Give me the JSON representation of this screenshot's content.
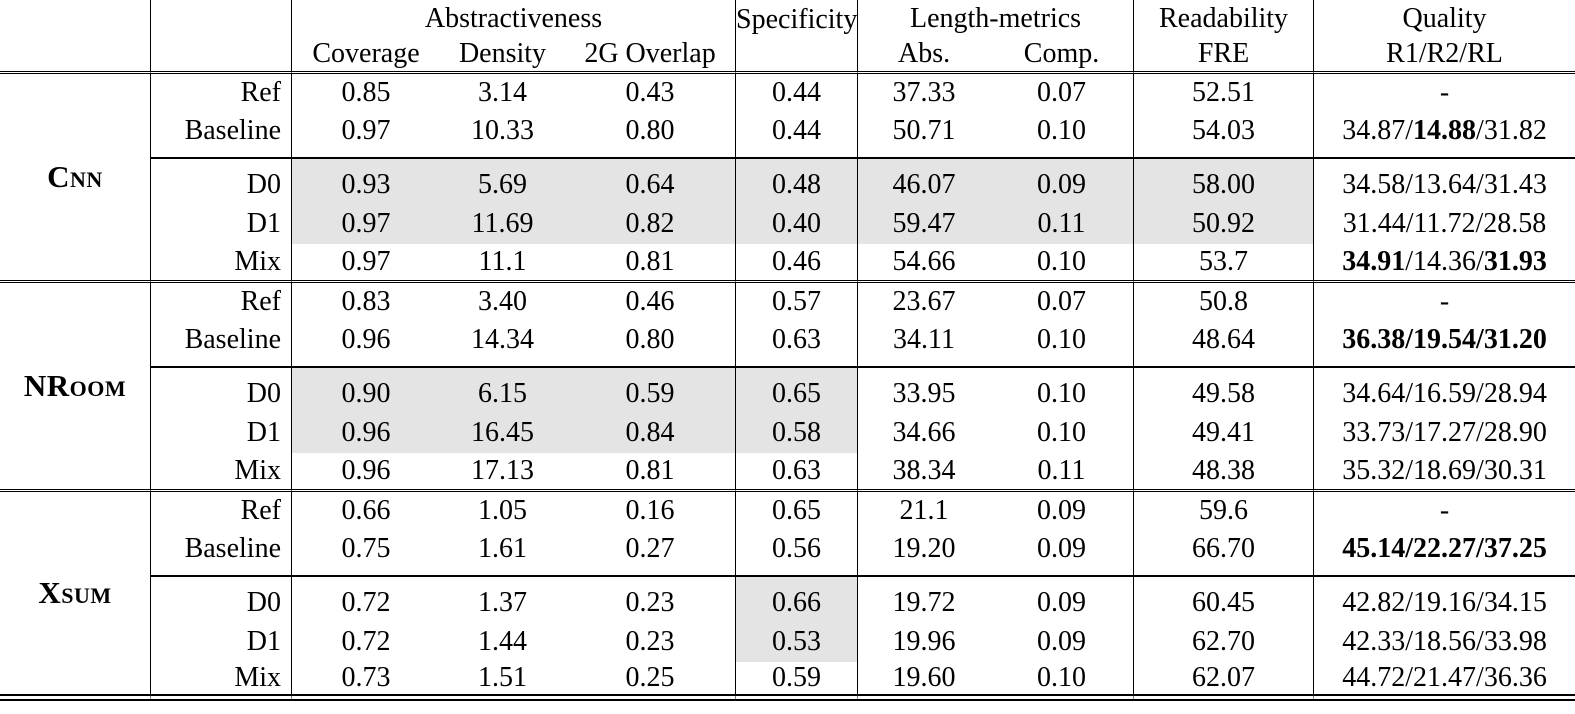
{
  "highlight_color": "#e4e4e4",
  "header": {
    "groups": {
      "abstractiveness": "Abstractiveness",
      "specificity": "Specificity",
      "length_metrics": "Length-metrics",
      "readability": "Readability",
      "quality": "Quality"
    },
    "subs": {
      "coverage": "Coverage",
      "density": "Density",
      "overlap": "2G Overlap",
      "abs": "Abs.",
      "comp": "Comp.",
      "fre": "FRE",
      "rouge": "R1/R2/RL"
    }
  },
  "blocks": [
    {
      "name": "Cnn",
      "rows": [
        {
          "label": "Ref",
          "values": [
            "0.85",
            "3.14",
            "0.43",
            "0.44",
            "37.33",
            "0.07",
            "52.51"
          ],
          "quality": [
            "-"
          ],
          "bold": [
            false
          ],
          "hl": []
        },
        {
          "label": "Baseline",
          "values": [
            "0.97",
            "10.33",
            "0.80",
            "0.44",
            "50.71",
            "0.10",
            "54.03"
          ],
          "quality": [
            "34.87",
            "14.88",
            "31.82"
          ],
          "bold": [
            false,
            true,
            false
          ],
          "hl": []
        },
        {
          "label": "D0",
          "values": [
            "0.93",
            "5.69",
            "0.64",
            "0.48",
            "46.07",
            "0.09",
            "58.00"
          ],
          "quality": [
            "34.58",
            "13.64",
            "31.43"
          ],
          "bold": [
            false,
            false,
            false
          ],
          "hl": [
            0,
            1,
            2,
            3,
            4,
            5,
            6
          ]
        },
        {
          "label": "D1",
          "values": [
            "0.97",
            "11.69",
            "0.82",
            "0.40",
            "59.47",
            "0.11",
            "50.92"
          ],
          "quality": [
            "31.44",
            "11.72",
            "28.58"
          ],
          "bold": [
            false,
            false,
            false
          ],
          "hl": [
            0,
            1,
            2,
            3,
            4,
            5,
            6
          ]
        },
        {
          "label": "Mix",
          "values": [
            "0.97",
            "11.1",
            "0.81",
            "0.46",
            "54.66",
            "0.10",
            "53.7"
          ],
          "quality": [
            "34.91",
            "14.36",
            "31.93"
          ],
          "bold": [
            true,
            false,
            true
          ],
          "hl": []
        }
      ]
    },
    {
      "name": "NRoom",
      "rows": [
        {
          "label": "Ref",
          "values": [
            "0.83",
            "3.40",
            "0.46",
            "0.57",
            "23.67",
            "0.07",
            "50.8"
          ],
          "quality": [
            "-"
          ],
          "bold": [
            false
          ],
          "hl": []
        },
        {
          "label": "Baseline",
          "values": [
            "0.96",
            "14.34",
            "0.80",
            "0.63",
            "34.11",
            "0.10",
            "48.64"
          ],
          "quality": [
            "36.38",
            "19.54",
            "31.20"
          ],
          "bold": [
            true,
            true,
            true
          ],
          "hl": []
        },
        {
          "label": "D0",
          "values": [
            "0.90",
            "6.15",
            "0.59",
            "0.65",
            "33.95",
            "0.10",
            "49.58"
          ],
          "quality": [
            "34.64",
            "16.59",
            "28.94"
          ],
          "bold": [
            false,
            false,
            false
          ],
          "hl": [
            0,
            1,
            2,
            3
          ]
        },
        {
          "label": "D1",
          "values": [
            "0.96",
            "16.45",
            "0.84",
            "0.58",
            "34.66",
            "0.10",
            "49.41"
          ],
          "quality": [
            "33.73",
            "17.27",
            "28.90"
          ],
          "bold": [
            false,
            false,
            false
          ],
          "hl": [
            0,
            1,
            2,
            3
          ]
        },
        {
          "label": "Mix",
          "values": [
            "0.96",
            "17.13",
            "0.81",
            "0.63",
            "38.34",
            "0.11",
            "48.38"
          ],
          "quality": [
            "35.32",
            "18.69",
            "30.31"
          ],
          "bold": [
            false,
            false,
            false
          ],
          "hl": []
        }
      ]
    },
    {
      "name": "Xsum",
      "rows": [
        {
          "label": "Ref",
          "values": [
            "0.66",
            "1.05",
            "0.16",
            "0.65",
            "21.1",
            "0.09",
            "59.6"
          ],
          "quality": [
            "-"
          ],
          "bold": [
            false
          ],
          "hl": []
        },
        {
          "label": "Baseline",
          "values": [
            "0.75",
            "1.61",
            "0.27",
            "0.56",
            "19.20",
            "0.09",
            "66.70"
          ],
          "quality": [
            "45.14",
            "22.27",
            "37.25"
          ],
          "bold": [
            true,
            true,
            true
          ],
          "hl": []
        },
        {
          "label": "D0",
          "values": [
            "0.72",
            "1.37",
            "0.23",
            "0.66",
            "19.72",
            "0.09",
            "60.45"
          ],
          "quality": [
            "42.82",
            "19.16",
            "34.15"
          ],
          "bold": [
            false,
            false,
            false
          ],
          "hl": [
            3
          ]
        },
        {
          "label": "D1",
          "values": [
            "0.72",
            "1.44",
            "0.23",
            "0.53",
            "19.96",
            "0.09",
            "62.70"
          ],
          "quality": [
            "42.33",
            "18.56",
            "33.98"
          ],
          "bold": [
            false,
            false,
            false
          ],
          "hl": [
            3
          ]
        },
        {
          "label": "Mix",
          "values": [
            "0.73",
            "1.51",
            "0.25",
            "0.59",
            "19.60",
            "0.10",
            "62.07"
          ],
          "quality": [
            "44.72",
            "21.47",
            "36.36"
          ],
          "bold": [
            false,
            false,
            false
          ],
          "hl": []
        }
      ]
    }
  ]
}
